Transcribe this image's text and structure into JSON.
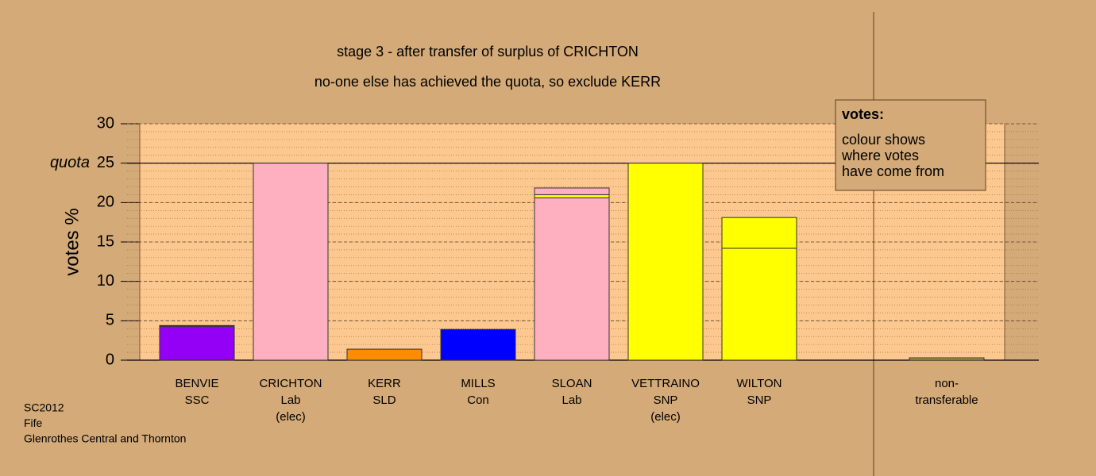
{
  "chart_data": {
    "type": "bar",
    "stacked": true,
    "title": "stage 3 - after transfer of surplus of CRICHTON",
    "subtitle": "no-one else has achieved the quota, so exclude KERR",
    "y_label": "votes %",
    "categories": [
      [
        "BENVIE",
        "SSC"
      ],
      [
        "CRICHTON",
        "Lab",
        "(elec)"
      ],
      [
        "KERR",
        "SLD"
      ],
      [
        "MILLS",
        "Con"
      ],
      [
        "SLOAN",
        "Lab"
      ],
      [
        "VETTRAINO",
        "SNP",
        "(elec)"
      ],
      [
        "WILTON",
        "SNP"
      ],
      null,
      [
        "non-",
        "transferable"
      ]
    ],
    "series": [
      {
        "colors": [
          "#9400f5",
          "#ffb0c0",
          "#ff8c00",
          "#0000ff",
          "#ffb0c0",
          "#ffff00",
          "#ffff00",
          null,
          null
        ],
        "values": [
          4.3,
          25,
          1.4,
          3.9,
          20.6,
          25,
          14.2,
          null,
          null
        ]
      },
      {
        "colors": [
          null,
          null,
          null,
          null,
          "#ffff00",
          null,
          "#ffff00",
          null,
          "#a8a040"
        ],
        "values": [
          null,
          null,
          null,
          null,
          0.4,
          null,
          3.9,
          null,
          0.3
        ]
      },
      {
        "colors": [
          "#ffb0c0",
          null,
          null,
          null,
          "#ffb0c0",
          null,
          null,
          null,
          null
        ],
        "values": [
          0.1,
          null,
          null,
          null,
          0.85,
          null,
          null,
          null,
          null
        ]
      }
    ],
    "ylim": [
      0,
      30
    ],
    "yticks": [
      0,
      5,
      10,
      15,
      20,
      25,
      30
    ],
    "yminor_step": 1,
    "grid": true,
    "quota": {
      "value": 25,
      "label": "quota"
    },
    "note_box": [
      "votes:",
      "colour shows",
      "where votes",
      "have come from"
    ],
    "footer": [
      "SC2012",
      "Fife",
      "Glenrothes Central and Thornton"
    ]
  }
}
